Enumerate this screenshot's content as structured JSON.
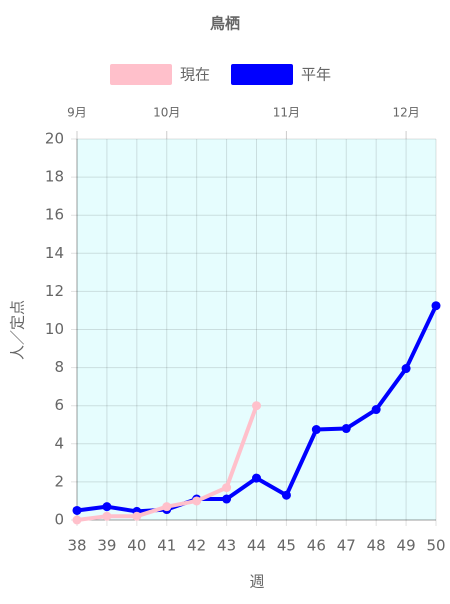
{
  "chart_data": {
    "type": "line",
    "title": "鳥栖",
    "x_label": "週",
    "y_label": "人／定点",
    "x": [
      38,
      39,
      40,
      41,
      42,
      43,
      44,
      45,
      46,
      47,
      48,
      49,
      50
    ],
    "series": [
      {
        "name": "現在",
        "color": "#ffc0cb",
        "values": [
          0,
          0.2,
          0.2,
          0.7,
          1.0,
          1.7,
          6.0,
          null,
          null,
          null,
          null,
          null,
          null
        ]
      },
      {
        "name": "平年",
        "color": "#0000ff",
        "values": [
          0.5,
          0.7,
          0.45,
          0.55,
          1.1,
          1.1,
          2.2,
          1.3,
          4.75,
          4.8,
          5.8,
          7.95,
          11.25
        ]
      }
    ],
    "xlim": [
      38,
      50
    ],
    "xticks": [
      38,
      39,
      40,
      41,
      42,
      43,
      44,
      45,
      46,
      47,
      48,
      49,
      50
    ],
    "x2ticks": [
      {
        "value": 38,
        "label": "9月"
      },
      {
        "value": 41,
        "label": "10月"
      },
      {
        "value": 45,
        "label": "11月"
      },
      {
        "value": 49,
        "label": "12月"
      }
    ],
    "ylim": [
      0,
      20
    ],
    "yticks": [
      0,
      2,
      4,
      6,
      8,
      10,
      12,
      14,
      16,
      18,
      20
    ],
    "grid": true,
    "plot_background": "#e6fdfe"
  }
}
